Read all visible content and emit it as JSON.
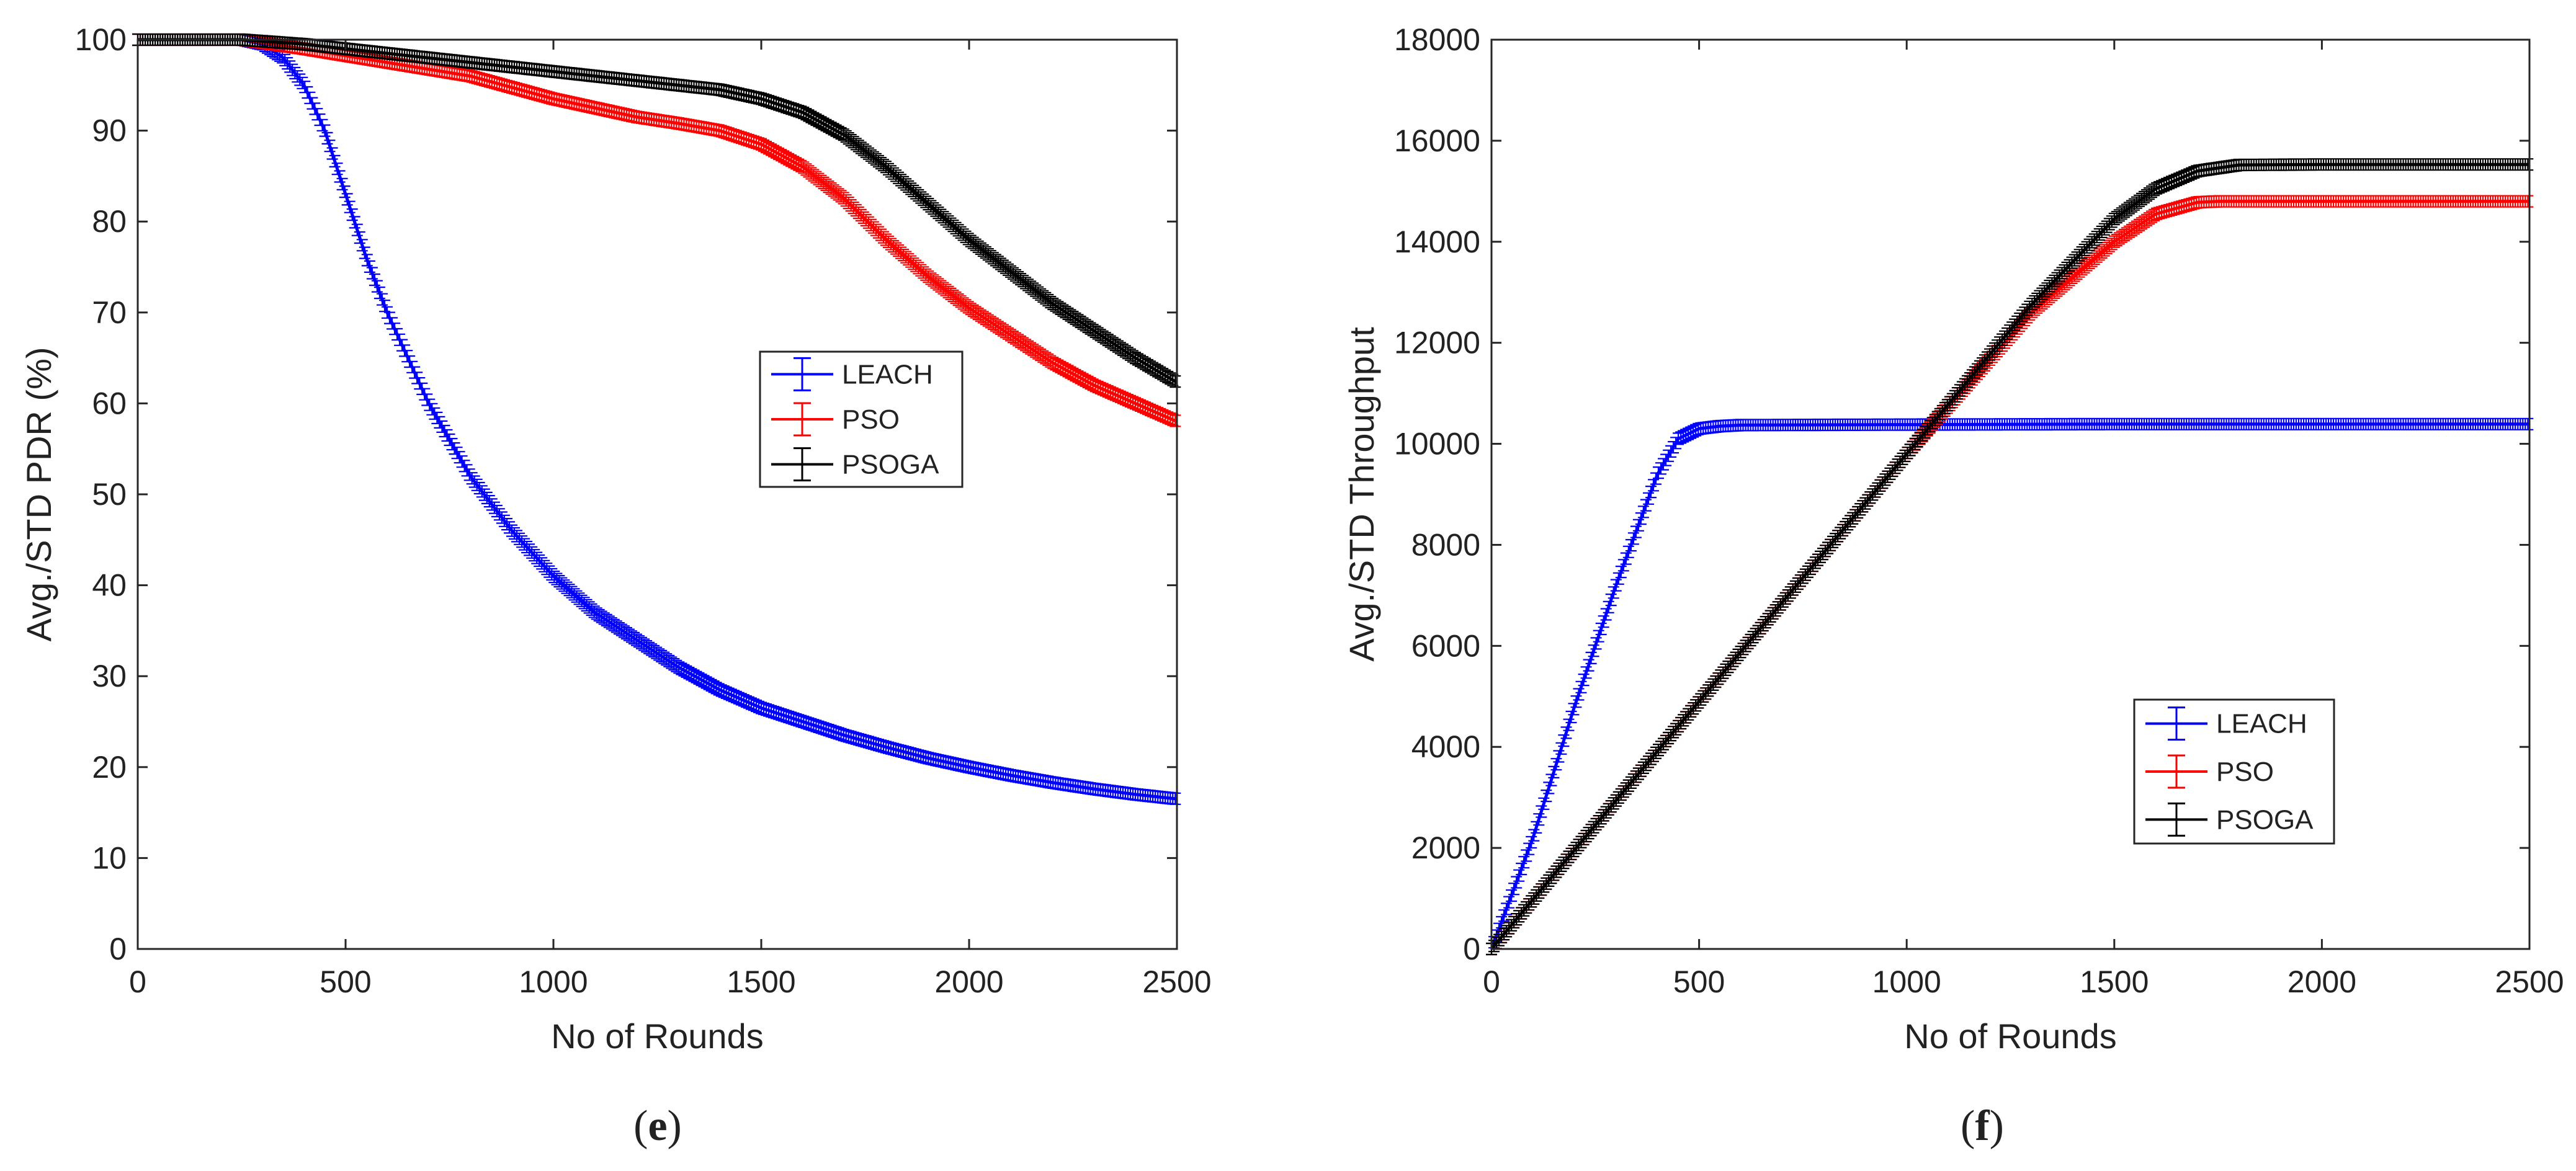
{
  "chart_data": [
    {
      "type": "line",
      "panel": "e",
      "caption_open": "(",
      "caption_letter": "e",
      "caption_close": ")",
      "xlabel": "No of Rounds",
      "ylabel": "Avg./STD PDR (%)",
      "xlim": [
        0,
        2500
      ],
      "ylim": [
        0,
        100
      ],
      "xticks": [
        0,
        500,
        1000,
        1500,
        2000,
        2500
      ],
      "yticks": [
        0,
        10,
        20,
        30,
        40,
        50,
        60,
        70,
        80,
        90,
        100
      ],
      "legend_position": "center-right",
      "error_bars": true,
      "series": [
        {
          "name": "LEACH",
          "color": "#0000ff",
          "x": [
            0,
            250,
            300,
            350,
            400,
            450,
            500,
            550,
            600,
            700,
            800,
            900,
            1000,
            1100,
            1200,
            1300,
            1400,
            1500,
            1600,
            1700,
            1800,
            1900,
            2000,
            2100,
            2200,
            2300,
            2400,
            2500
          ],
          "y": [
            100,
            100,
            99.5,
            98,
            95,
            90,
            83,
            76,
            70,
            60,
            52,
            46,
            41,
            37,
            34,
            31,
            28.5,
            26.5,
            25,
            23.5,
            22.2,
            21,
            20,
            19.1,
            18.3,
            17.6,
            17,
            16.5
          ]
        },
        {
          "name": "PSO",
          "color": "#ff0000",
          "x": [
            0,
            250,
            400,
            600,
            800,
            1000,
            1100,
            1200,
            1300,
            1400,
            1500,
            1600,
            1700,
            1800,
            1900,
            2000,
            2100,
            2200,
            2300,
            2400,
            2500
          ],
          "y": [
            100,
            100,
            99,
            97.5,
            96,
            93.5,
            92.5,
            91.5,
            90.8,
            90,
            88.5,
            86,
            82.5,
            78,
            74,
            70.5,
            67.5,
            64.5,
            62,
            60,
            58
          ]
        },
        {
          "name": "PSOGA",
          "color": "#000000",
          "x": [
            0,
            250,
            400,
            600,
            800,
            1000,
            1200,
            1400,
            1500,
            1600,
            1700,
            1800,
            1900,
            2000,
            2100,
            2200,
            2300,
            2400,
            2500
          ],
          "y": [
            100,
            100,
            99.5,
            98.5,
            97.5,
            96.5,
            95.5,
            94.5,
            93.5,
            92,
            89.5,
            86,
            82,
            78,
            74.5,
            71,
            68,
            65,
            62.3
          ]
        }
      ]
    },
    {
      "type": "line",
      "panel": "f",
      "caption_open": "(",
      "caption_letter": "f",
      "caption_close": ")",
      "xlabel": "No of Rounds",
      "ylabel": "Avg./STD Throughput",
      "xlim": [
        0,
        2500
      ],
      "ylim": [
        0,
        18000
      ],
      "xticks": [
        0,
        500,
        1000,
        1500,
        2000,
        2500
      ],
      "yticks": [
        0,
        2000,
        4000,
        6000,
        8000,
        10000,
        12000,
        14000,
        16000,
        18000
      ],
      "legend_position": "lower-right",
      "error_bars": true,
      "series": [
        {
          "name": "LEACH",
          "color": "#0000ff",
          "x": [
            0,
            100,
            200,
            300,
            400,
            450,
            500,
            550,
            600,
            1000,
            1500,
            2000,
            2500
          ],
          "y": [
            0,
            2200,
            4800,
            7200,
            9400,
            10100,
            10300,
            10350,
            10370,
            10380,
            10390,
            10390,
            10390
          ]
        },
        {
          "name": "PSO",
          "color": "#ff0000",
          "x": [
            0,
            500,
            1000,
            1300,
            1500,
            1600,
            1700,
            1750,
            2000,
            2500
          ],
          "y": [
            0,
            4900,
            9800,
            12600,
            14000,
            14550,
            14780,
            14800,
            14800,
            14800
          ]
        },
        {
          "name": "PSOGA",
          "color": "#000000",
          "x": [
            0,
            500,
            1000,
            1300,
            1500,
            1600,
            1700,
            1800,
            2000,
            2500
          ],
          "y": [
            0,
            4900,
            9800,
            12750,
            14450,
            15050,
            15400,
            15520,
            15530,
            15530
          ]
        }
      ]
    }
  ]
}
